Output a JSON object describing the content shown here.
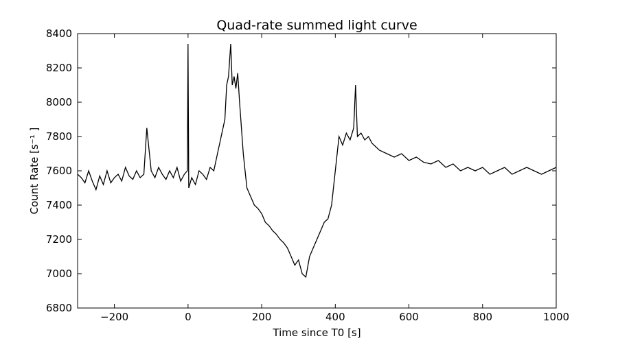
{
  "chart_data": {
    "type": "line",
    "title": "Quad-rate summed light curve",
    "xlabel": "Time since T0 [s]",
    "ylabel": "Count Rate [s⁻¹ ]",
    "xlim": [
      -300,
      1000
    ],
    "ylim": [
      6800,
      8400
    ],
    "xticks": [
      -200,
      0,
      200,
      400,
      600,
      800,
      1000
    ],
    "xtick_labels": [
      "−200",
      "0",
      "200",
      "400",
      "600",
      "800",
      "1000"
    ],
    "yticks": [
      6800,
      7000,
      7200,
      7400,
      7600,
      7800,
      8000,
      8200,
      8400
    ],
    "ytick_labels": [
      "6800",
      "7000",
      "7200",
      "7400",
      "7600",
      "7800",
      "8000",
      "8200",
      "8400"
    ],
    "grid": false,
    "line_color": "#000000",
    "series": [
      {
        "x": [
          -300,
          -290,
          -280,
          -270,
          -260,
          -250,
          -240,
          -230,
          -220,
          -210,
          -200,
          -190,
          -180,
          -170,
          -160,
          -150,
          -140,
          -130,
          -120,
          -112,
          -100,
          -90,
          -80,
          -70,
          -60,
          -50,
          -40,
          -30,
          -20,
          -10,
          -2,
          0,
          2,
          10,
          20,
          30,
          40,
          50,
          60,
          70,
          80,
          90,
          100,
          105,
          110,
          116,
          120,
          125,
          130,
          135,
          140,
          145,
          150,
          155,
          160,
          170,
          180,
          190,
          200,
          210,
          220,
          230,
          240,
          250,
          260,
          270,
          280,
          290,
          300,
          310,
          320,
          330,
          340,
          350,
          360,
          370,
          380,
          390,
          400,
          410,
          420,
          430,
          440,
          450,
          455,
          460,
          470,
          480,
          490,
          500,
          520,
          540,
          560,
          580,
          600,
          620,
          640,
          660,
          680,
          700,
          720,
          740,
          760,
          780,
          800,
          820,
          840,
          860,
          880,
          900,
          920,
          940,
          960,
          980,
          1000
        ],
        "y": [
          7580,
          7560,
          7530,
          7600,
          7540,
          7490,
          7570,
          7520,
          7600,
          7530,
          7560,
          7580,
          7540,
          7620,
          7570,
          7550,
          7600,
          7560,
          7580,
          7850,
          7600,
          7560,
          7620,
          7580,
          7550,
          7600,
          7560,
          7620,
          7540,
          7580,
          7600,
          8340,
          7500,
          7560,
          7520,
          7600,
          7580,
          7550,
          7620,
          7600,
          7700,
          7800,
          7900,
          8100,
          8150,
          8340,
          8100,
          8150,
          8080,
          8170,
          8000,
          7850,
          7700,
          7600,
          7500,
          7450,
          7400,
          7380,
          7350,
          7300,
          7280,
          7250,
          7230,
          7200,
          7180,
          7150,
          7100,
          7050,
          7080,
          7000,
          6980,
          7100,
          7150,
          7200,
          7250,
          7300,
          7320,
          7400,
          7600,
          7800,
          7750,
          7820,
          7780,
          7850,
          8100,
          7800,
          7820,
          7780,
          7800,
          7760,
          7720,
          7700,
          7680,
          7700,
          7660,
          7680,
          7650,
          7640,
          7660,
          7620,
          7640,
          7600,
          7620,
          7600,
          7620,
          7580,
          7600,
          7620,
          7580,
          7600,
          7620,
          7600,
          7580,
          7600,
          7620
        ]
      }
    ]
  }
}
